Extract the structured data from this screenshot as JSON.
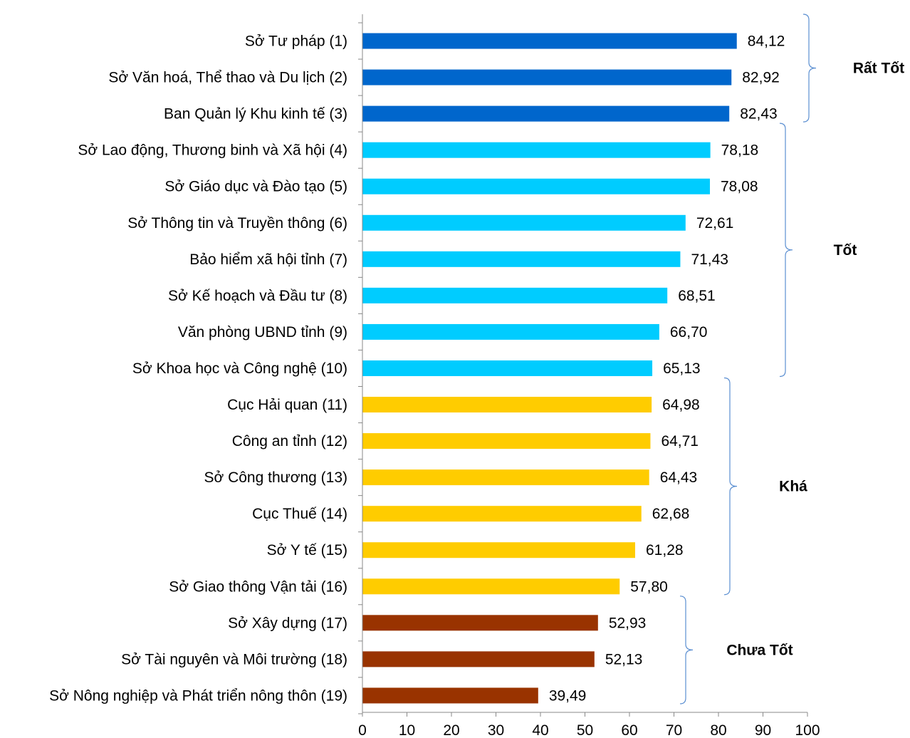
{
  "chart_data": {
    "type": "bar",
    "orientation": "horizontal",
    "categories": [
      "Sở Tư pháp (1)",
      "Sở Văn hoá, Thể thao và Du lịch (2)",
      "Ban Quản lý Khu kinh tế (3)",
      "Sở Lao động, Thương binh và Xã hội (4)",
      "Sở Giáo dục và Đào tạo (5)",
      "Sở Thông tin và Truyền thông (6)",
      "Bảo hiểm xã hội tỉnh (7)",
      "Sở Kế hoạch và Đầu tư (8)",
      "Văn phòng UBND tỉnh (9)",
      "Sở Khoa học và Công nghệ (10)",
      "Cục Hải quan (11)",
      "Công an tỉnh (12)",
      "Sở Công thương (13)",
      "Cục Thuế (14)",
      "Sở Y tế (15)",
      "Sở Giao thông Vận tải (16)",
      "Sở Xây dựng (17)",
      "Sở Tài nguyên và Môi trường (18)",
      "Sở Nông nghiệp và Phát triển nông thôn (19)"
    ],
    "values": [
      84.12,
      82.92,
      82.43,
      78.18,
      78.08,
      72.61,
      71.43,
      68.51,
      66.7,
      65.13,
      64.98,
      64.71,
      64.43,
      62.68,
      61.28,
      57.8,
      52.93,
      52.13,
      39.49
    ],
    "value_labels": [
      "84,12",
      "82,92",
      "82,43",
      "78,18",
      "78,08",
      "72,61",
      "71,43",
      "68,51",
      "66,70",
      "65,13",
      "64,98",
      "64,71",
      "64,43",
      "62,68",
      "61,28",
      "57,80",
      "52,93",
      "52,13",
      "39,49"
    ],
    "groups": [
      {
        "label": "Rất Tốt",
        "start": 0,
        "end": 2,
        "color": "#0066cc"
      },
      {
        "label": "Tốt",
        "start": 3,
        "end": 9,
        "color": "#00ccff"
      },
      {
        "label": "Khá",
        "start": 10,
        "end": 15,
        "color": "#ffcc00"
      },
      {
        "label": "Chưa Tốt",
        "start": 16,
        "end": 18,
        "color": "#993300"
      }
    ],
    "xlim": [
      0,
      100
    ],
    "xticks": [
      0,
      10,
      20,
      30,
      40,
      50,
      60,
      70,
      80,
      90,
      100
    ],
    "title": "",
    "xlabel": "",
    "ylabel": "",
    "grid": false,
    "legend": "none"
  }
}
